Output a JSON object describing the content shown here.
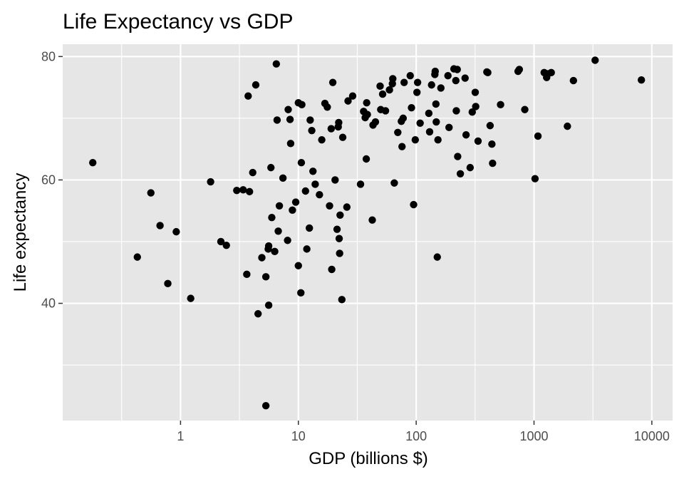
{
  "chart_data": {
    "type": "scatter",
    "title": "Life Expectancy vs GDP",
    "xlabel": "GDP (billions $)",
    "ylabel": "Life expectancy",
    "x_scale": "log10",
    "xlim": [
      0.1,
      15000
    ],
    "ylim": [
      21,
      82
    ],
    "x_ticks": [
      1,
      10,
      100,
      1000,
      10000
    ],
    "x_tick_labels": [
      "1",
      "10",
      "100",
      "1000",
      "10000"
    ],
    "y_ticks": [
      40,
      60,
      80
    ],
    "y_tick_labels": [
      "40",
      "60",
      "80"
    ],
    "grid": true,
    "panel_background": "#e6e6e6",
    "point_color": "#000000",
    "points": [
      {
        "x": 0.18,
        "y": 62.8
      },
      {
        "x": 0.43,
        "y": 47.5
      },
      {
        "x": 0.56,
        "y": 57.9
      },
      {
        "x": 0.67,
        "y": 52.6
      },
      {
        "x": 0.78,
        "y": 43.2
      },
      {
        "x": 0.92,
        "y": 51.6
      },
      {
        "x": 1.22,
        "y": 40.8
      },
      {
        "x": 1.8,
        "y": 59.7
      },
      {
        "x": 2.2,
        "y": 50.0
      },
      {
        "x": 2.45,
        "y": 49.4
      },
      {
        "x": 3.0,
        "y": 58.3
      },
      {
        "x": 3.4,
        "y": 58.4
      },
      {
        "x": 3.65,
        "y": 44.7
      },
      {
        "x": 3.75,
        "y": 73.6
      },
      {
        "x": 3.85,
        "y": 58.1
      },
      {
        "x": 4.1,
        "y": 61.2
      },
      {
        "x": 4.35,
        "y": 75.4
      },
      {
        "x": 4.55,
        "y": 38.3
      },
      {
        "x": 4.9,
        "y": 47.4
      },
      {
        "x": 5.3,
        "y": 23.4
      },
      {
        "x": 5.3,
        "y": 44.3
      },
      {
        "x": 5.55,
        "y": 48.8
      },
      {
        "x": 5.6,
        "y": 49.3
      },
      {
        "x": 5.6,
        "y": 39.7
      },
      {
        "x": 5.85,
        "y": 62.0
      },
      {
        "x": 5.95,
        "y": 53.9
      },
      {
        "x": 6.3,
        "y": 48.4
      },
      {
        "x": 6.5,
        "y": 78.8
      },
      {
        "x": 6.6,
        "y": 69.7
      },
      {
        "x": 6.75,
        "y": 51.7
      },
      {
        "x": 6.9,
        "y": 55.8
      },
      {
        "x": 7.4,
        "y": 60.3
      },
      {
        "x": 8.1,
        "y": 50.2
      },
      {
        "x": 8.2,
        "y": 71.4
      },
      {
        "x": 8.5,
        "y": 69.8
      },
      {
        "x": 8.6,
        "y": 65.9
      },
      {
        "x": 8.9,
        "y": 55.1
      },
      {
        "x": 9.5,
        "y": 56.4
      },
      {
        "x": 10.0,
        "y": 72.5
      },
      {
        "x": 10.0,
        "y": 46.1
      },
      {
        "x": 10.5,
        "y": 41.7
      },
      {
        "x": 10.6,
        "y": 62.8
      },
      {
        "x": 10.7,
        "y": 72.2
      },
      {
        "x": 11.5,
        "y": 58.2
      },
      {
        "x": 11.8,
        "y": 48.8
      },
      {
        "x": 12.4,
        "y": 52.2
      },
      {
        "x": 12.6,
        "y": 69.7
      },
      {
        "x": 13.0,
        "y": 68.0
      },
      {
        "x": 13.3,
        "y": 61.4
      },
      {
        "x": 13.9,
        "y": 59.3
      },
      {
        "x": 15.1,
        "y": 57.6
      },
      {
        "x": 15.8,
        "y": 66.5
      },
      {
        "x": 16.8,
        "y": 72.4
      },
      {
        "x": 17.6,
        "y": 71.8
      },
      {
        "x": 18.4,
        "y": 55.8
      },
      {
        "x": 19.0,
        "y": 68.3
      },
      {
        "x": 19.2,
        "y": 45.5
      },
      {
        "x": 19.6,
        "y": 75.8
      },
      {
        "x": 20.5,
        "y": 60.0
      },
      {
        "x": 21.3,
        "y": 52.0
      },
      {
        "x": 21.8,
        "y": 68.6
      },
      {
        "x": 22.0,
        "y": 69.3
      },
      {
        "x": 22.2,
        "y": 50.5
      },
      {
        "x": 22.4,
        "y": 48.1
      },
      {
        "x": 22.6,
        "y": 54.3
      },
      {
        "x": 23.4,
        "y": 40.6
      },
      {
        "x": 23.8,
        "y": 66.9
      },
      {
        "x": 25.8,
        "y": 55.6
      },
      {
        "x": 26.4,
        "y": 72.8
      },
      {
        "x": 28.9,
        "y": 73.6
      },
      {
        "x": 33.7,
        "y": 59.3
      },
      {
        "x": 35.8,
        "y": 71.1
      },
      {
        "x": 36.9,
        "y": 70.1
      },
      {
        "x": 37.7,
        "y": 63.4
      },
      {
        "x": 38.0,
        "y": 72.5
      },
      {
        "x": 38.5,
        "y": 70.6
      },
      {
        "x": 42.4,
        "y": 53.5
      },
      {
        "x": 43.0,
        "y": 68.9
      },
      {
        "x": 45.1,
        "y": 69.4
      },
      {
        "x": 49.4,
        "y": 75.2
      },
      {
        "x": 50.0,
        "y": 71.4
      },
      {
        "x": 51.9,
        "y": 73.9
      },
      {
        "x": 54.9,
        "y": 71.2
      },
      {
        "x": 59.3,
        "y": 74.6
      },
      {
        "x": 62.8,
        "y": 75.6
      },
      {
        "x": 63.3,
        "y": 76.4
      },
      {
        "x": 65.2,
        "y": 59.5
      },
      {
        "x": 69.8,
        "y": 67.7
      },
      {
        "x": 74.8,
        "y": 69.5
      },
      {
        "x": 75.8,
        "y": 65.4
      },
      {
        "x": 77.5,
        "y": 70.0
      },
      {
        "x": 79.0,
        "y": 75.8
      },
      {
        "x": 89.0,
        "y": 76.9
      },
      {
        "x": 91.2,
        "y": 71.7
      },
      {
        "x": 95.1,
        "y": 56.0
      },
      {
        "x": 98.2,
        "y": 66.5
      },
      {
        "x": 101.5,
        "y": 74.2
      },
      {
        "x": 102.8,
        "y": 75.8
      },
      {
        "x": 108.0,
        "y": 69.2
      },
      {
        "x": 128.0,
        "y": 70.8
      },
      {
        "x": 130.0,
        "y": 67.8
      },
      {
        "x": 135.0,
        "y": 75.4
      },
      {
        "x": 144.0,
        "y": 77.1
      },
      {
        "x": 145.0,
        "y": 77.6
      },
      {
        "x": 147.0,
        "y": 72.3
      },
      {
        "x": 148.0,
        "y": 69.4
      },
      {
        "x": 151.0,
        "y": 47.5
      },
      {
        "x": 153.0,
        "y": 66.5
      },
      {
        "x": 162.0,
        "y": 74.9
      },
      {
        "x": 186.0,
        "y": 76.9
      },
      {
        "x": 190.0,
        "y": 68.5
      },
      {
        "x": 209.0,
        "y": 78.0
      },
      {
        "x": 217.0,
        "y": 76.1
      },
      {
        "x": 219.0,
        "y": 71.2
      },
      {
        "x": 223.0,
        "y": 77.9
      },
      {
        "x": 225.0,
        "y": 63.8
      },
      {
        "x": 237.0,
        "y": 61.0
      },
      {
        "x": 260.0,
        "y": 76.5
      },
      {
        "x": 265.0,
        "y": 67.3
      },
      {
        "x": 287.0,
        "y": 62.0
      },
      {
        "x": 299.0,
        "y": 71.0
      },
      {
        "x": 317.0,
        "y": 74.2
      },
      {
        "x": 320.0,
        "y": 71.9
      },
      {
        "x": 335.0,
        "y": 66.3
      },
      {
        "x": 398.0,
        "y": 77.5
      },
      {
        "x": 405.0,
        "y": 77.4
      },
      {
        "x": 424.0,
        "y": 68.8
      },
      {
        "x": 439.0,
        "y": 65.8
      },
      {
        "x": 445.0,
        "y": 62.7
      },
      {
        "x": 520.0,
        "y": 72.2
      },
      {
        "x": 732.0,
        "y": 77.6
      },
      {
        "x": 750.0,
        "y": 77.9
      },
      {
        "x": 835.0,
        "y": 71.4
      },
      {
        "x": 1020.0,
        "y": 60.2
      },
      {
        "x": 1080.0,
        "y": 67.1
      },
      {
        "x": 1220.0,
        "y": 77.4
      },
      {
        "x": 1280.0,
        "y": 76.6
      },
      {
        "x": 1310.0,
        "y": 77.2
      },
      {
        "x": 1400.0,
        "y": 77.4
      },
      {
        "x": 1920.0,
        "y": 68.7
      },
      {
        "x": 2160.0,
        "y": 76.1
      },
      {
        "x": 3300.0,
        "y": 79.4
      },
      {
        "x": 8150.0,
        "y": 76.2
      }
    ]
  }
}
